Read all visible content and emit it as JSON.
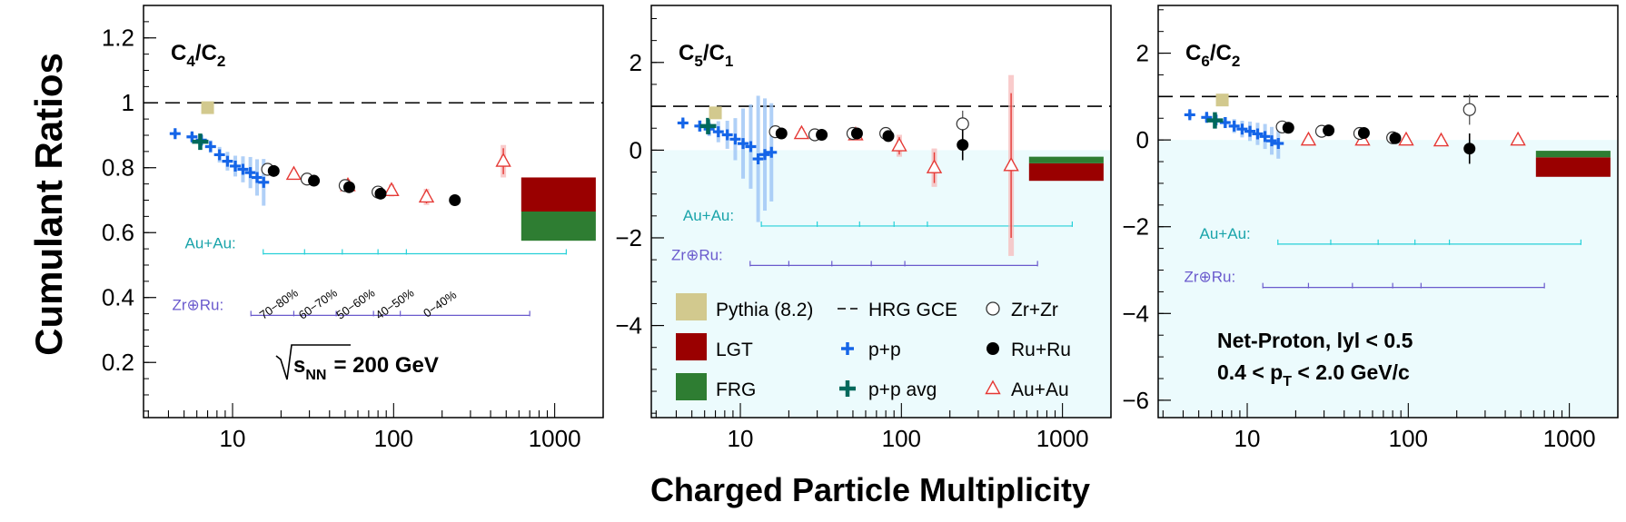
{
  "figure": {
    "ylabel": "Cumulant Ratios",
    "xlabel": "Charged Particle Multiplicity"
  },
  "legend": {
    "pythia": "Pythia (8.2)",
    "lgt": "LGT",
    "frg": "FRG",
    "hrg": "HRG GCE",
    "pp": "p+p",
    "ppavg": "p+p avg",
    "zrzr": "Zr+Zr",
    "ruru": "Ru+Ru",
    "auau": "Au+Au"
  },
  "colors": {
    "pythia": "#d2c98e",
    "lgt": "#9a0000",
    "frg": "#2e7d32",
    "pp": "#1565e8",
    "ppavg": "#00695c",
    "auau": "#e53935",
    "au_scale": "#26d0d8",
    "zr_scale": "#6a5acd",
    "shade": "#ecfbfd"
  },
  "annotations": {
    "energy_prefix": "s",
    "energy_sub": "NN",
    "energy_value": "= 200 GeV",
    "cut1": "Net-Proton, lyl < 0.5",
    "cut2_a": "0.4 < p",
    "cut2_sub": "T",
    "cut2_b": " < 2.0 GeV/c",
    "au_label": "Au+Au:",
    "zr_label": "Zr⊕Ru:",
    "centralities": [
      "70−80%",
      "60−70%",
      "50−60%",
      "40−50%",
      "0−40%"
    ]
  },
  "chart_data": [
    {
      "type": "scatter",
      "title_main": "C",
      "title_parts": [
        "4",
        "/C",
        "2"
      ],
      "xscale": "log",
      "xlim": [
        2.8,
        2000
      ],
      "ylim": [
        0.03,
        1.3
      ],
      "yticks": [
        0.2,
        0.4,
        0.6,
        0.8,
        1.0,
        1.2
      ],
      "ytick_labels": [
        "0.2",
        "0.4",
        "0.6",
        "0.8",
        "1",
        "1.2"
      ],
      "xticks": [
        10,
        100,
        1000
      ],
      "xtick_labels": [
        "10",
        "100",
        "1000"
      ],
      "hrg_gce": 1.0,
      "pythia": {
        "x": 7.0,
        "y": 0.985
      },
      "lgt_band": [
        0.665,
        0.77
      ],
      "frg_band": [
        0.575,
        0.665
      ],
      "pp": {
        "x": [
          4.4,
          5.6,
          6.4,
          7.3,
          8.3,
          9.3,
          10.4,
          11.6,
          12.9,
          14.2,
          15.6
        ],
        "y": [
          0.905,
          0.895,
          0.885,
          0.865,
          0.84,
          0.82,
          0.805,
          0.795,
          0.785,
          0.77,
          0.755
        ],
        "err": [
          0.005,
          0.008,
          0.01,
          0.012,
          0.015,
          0.018,
          0.02,
          0.025,
          0.03,
          0.035,
          0.045
        ]
      },
      "ppavg": {
        "x": 6.3,
        "y": 0.88
      },
      "zrzr": {
        "x": [
          16.5,
          29,
          50,
          80
        ],
        "y": [
          0.795,
          0.765,
          0.745,
          0.725
        ],
        "err": [
          0.012,
          0.01,
          0.01,
          0.01
        ]
      },
      "ruru": {
        "x": [
          18,
          32,
          53,
          83,
          240
        ],
        "y": [
          0.79,
          0.76,
          0.74,
          0.72,
          0.7
        ],
        "err": [
          0.012,
          0.01,
          0.01,
          0.01,
          0.01
        ]
      },
      "auau": {
        "x": [
          24,
          52,
          97,
          160,
          480
        ],
        "y": [
          0.78,
          0.745,
          0.73,
          0.71,
          0.82
        ],
        "err": [
          0.01,
          0.015,
          0.015,
          0.02,
          0.04
        ]
      },
      "au_scale": {
        "x": [
          15.5,
          1180
        ],
        "ticks": [
          15.5,
          28,
          48,
          80,
          120
        ],
        "y": 0.535
      },
      "zr_scale": {
        "x": [
          13,
          700
        ],
        "ticks": [
          13,
          24,
          44,
          75,
          110
        ],
        "y": 0.345
      }
    },
    {
      "type": "scatter",
      "title_main": "C",
      "title_parts": [
        "5",
        "/C",
        "1"
      ],
      "xscale": "log",
      "xlim": [
        2.8,
        2000
      ],
      "ylim": [
        -6.1,
        3.3
      ],
      "yticks": [
        -4,
        -2,
        0,
        2
      ],
      "ytick_labels": [
        "−4",
        "−2",
        "0",
        "2"
      ],
      "xticks": [
        10,
        100,
        1000
      ],
      "xtick_labels": [
        "10",
        "100",
        "1000"
      ],
      "hrg_gce": 1.0,
      "pythia": {
        "x": 7.0,
        "y": 0.85
      },
      "lgt_band": [
        -0.7,
        -0.3
      ],
      "frg_band": [
        -0.3,
        -0.15
      ],
      "pp": {
        "x": [
          4.4,
          5.6,
          6.4,
          7.3,
          8.3,
          9.3,
          10.4,
          11.6,
          12.9,
          14.2,
          15.6
        ],
        "y": [
          0.62,
          0.55,
          0.48,
          0.42,
          0.35,
          0.25,
          0.15,
          0.08,
          -0.2,
          -0.1,
          -0.05
        ],
        "err": [
          0.05,
          0.08,
          0.1,
          0.15,
          0.2,
          0.3,
          0.5,
          0.6,
          0.9,
          0.8,
          0.7
        ]
      },
      "ppavg": {
        "x": 6.3,
        "y": 0.55
      },
      "zrzr": {
        "x": [
          16.5,
          29,
          50,
          80,
          240
        ],
        "y": [
          0.42,
          0.35,
          0.38,
          0.38,
          0.6
        ],
        "err": [
          0.1,
          0.1,
          0.1,
          0.1,
          0.3
        ]
      },
      "ruru": {
        "x": [
          18,
          32,
          53,
          83,
          240
        ],
        "y": [
          0.38,
          0.35,
          0.38,
          0.32,
          0.12
        ],
        "err": [
          0.1,
          0.1,
          0.1,
          0.1,
          0.35
        ]
      },
      "auau": {
        "x": [
          24,
          52,
          97,
          160,
          480
        ],
        "y": [
          0.38,
          0.35,
          0.1,
          -0.4,
          -0.35
        ],
        "err": [
          0.1,
          0.1,
          0.2,
          0.35,
          1.65
        ]
      },
      "au_scale": {
        "x": [
          13.5,
          1150
        ],
        "ticks": [
          13.5,
          30,
          55,
          90,
          145
        ],
        "y": -1.73
      },
      "zr_scale": {
        "x": [
          11.5,
          700
        ],
        "ticks": [
          11.5,
          20,
          37,
          65,
          105
        ],
        "y": -2.63
      }
    },
    {
      "type": "scatter",
      "title_main": "C",
      "title_parts": [
        "6",
        "/C",
        "2"
      ],
      "xscale": "log",
      "xlim": [
        2.8,
        2000
      ],
      "ylim": [
        -6.4,
        3.1
      ],
      "yticks": [
        -6,
        -4,
        -2,
        0,
        2
      ],
      "ytick_labels": [
        "−6",
        "−4",
        "−2",
        "0",
        "2"
      ],
      "xticks": [
        10,
        100,
        1000
      ],
      "xtick_labels": [
        "10",
        "100",
        "1000"
      ],
      "hrg_gce": 1.0,
      "pythia": {
        "x": 7.0,
        "y": 0.92
      },
      "lgt_band": [
        -0.85,
        -0.4
      ],
      "frg_band": [
        -0.4,
        -0.25
      ],
      "pp": {
        "x": [
          4.4,
          5.6,
          6.4,
          7.3,
          8.3,
          9.3,
          10.4,
          11.6,
          12.9,
          14.2,
          15.6
        ],
        "y": [
          0.58,
          0.52,
          0.46,
          0.4,
          0.32,
          0.25,
          0.2,
          0.14,
          0.08,
          -0.02,
          -0.08
        ],
        "err": [
          0.05,
          0.06,
          0.07,
          0.08,
          0.1,
          0.12,
          0.14,
          0.16,
          0.18,
          0.2,
          0.22
        ]
      },
      "ppavg": {
        "x": 6.3,
        "y": 0.45
      },
      "zrzr": {
        "x": [
          16.5,
          29,
          50,
          80,
          240
        ],
        "y": [
          0.3,
          0.2,
          0.15,
          0.05,
          0.7
        ],
        "err": [
          0.08,
          0.08,
          0.08,
          0.08,
          0.35
        ]
      },
      "ruru": {
        "x": [
          18,
          32,
          53,
          83,
          240
        ],
        "y": [
          0.28,
          0.22,
          0.16,
          0.04,
          -0.2
        ],
        "err": [
          0.08,
          0.08,
          0.08,
          0.08,
          0.35
        ]
      },
      "auau": {
        "x": [
          24,
          52,
          97,
          160,
          480
        ],
        "y": [
          0.0,
          0.0,
          0.0,
          -0.02,
          0.0
        ],
        "err": [
          0.03,
          0.03,
          0.03,
          0.03,
          0.05
        ]
      },
      "au_scale": {
        "x": [
          15.5,
          1180
        ],
        "ticks": [
          15.5,
          33,
          65,
          110,
          180
        ],
        "y": -2.4
      },
      "zr_scale": {
        "x": [
          12.5,
          700
        ],
        "ticks": [
          12.5,
          24,
          45,
          80,
          120
        ],
        "y": -3.4
      }
    }
  ]
}
